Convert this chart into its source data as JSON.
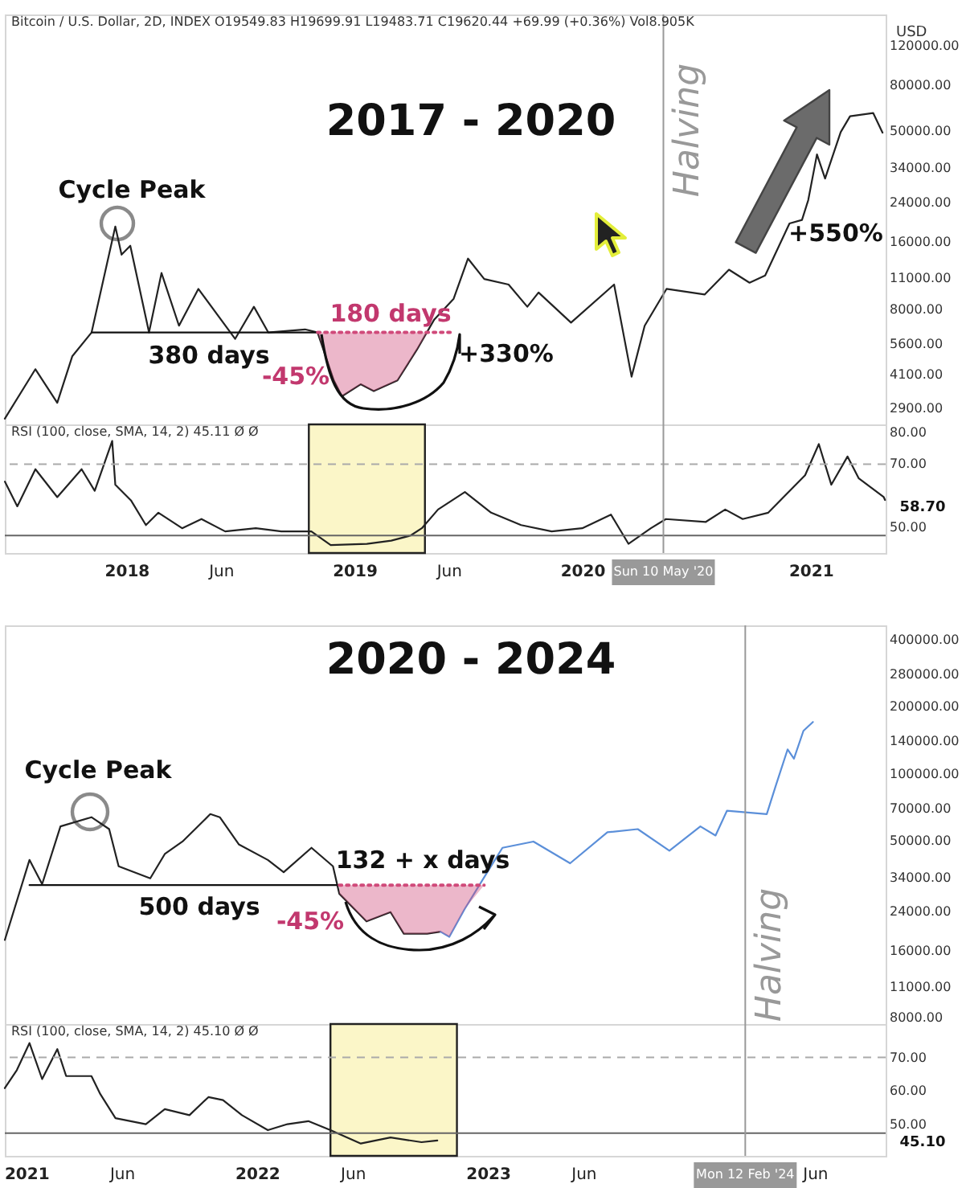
{
  "chart_data": [
    {
      "type": "line",
      "title": "2017 - 2020",
      "ylabel": "USD",
      "log": true,
      "tick_labels": "y",
      "xlim": [
        "2017-06-20",
        "2021-05-01"
      ],
      "ylim": [
        2450,
        165000
      ],
      "yticks": [
        {
          "value": 120000,
          "label": "120000.00"
        },
        {
          "value": 80000,
          "label": "80000.00"
        },
        {
          "value": 50000,
          "label": "50000.00"
        },
        {
          "value": 34000,
          "label": "34000.00"
        },
        {
          "value": 24000,
          "label": "24000.00"
        },
        {
          "value": 16000,
          "label": "16000.00"
        },
        {
          "value": 11000,
          "label": "11000.00"
        },
        {
          "value": 8000,
          "label": "8000.00"
        },
        {
          "value": 5600,
          "label": "5600.00"
        },
        {
          "value": 4100,
          "label": "4100.00"
        },
        {
          "value": 2900,
          "label": "2900.00"
        }
      ],
      "series": [
        {
          "color": "#222222",
          "x": [
            "2017-06-20",
            "2017-08-08",
            "2017-09-12",
            "2017-10-06",
            "2017-11-06",
            "2017-12-14",
            "2017-12-24",
            "2018-01-07",
            "2018-02-06",
            "2018-02-26",
            "2018-03-26",
            "2018-04-26",
            "2018-06-24",
            "2018-07-24",
            "2018-08-16",
            "2018-10-14",
            "2018-11-03",
            "2018-11-29",
            "2018-12-12",
            "2019-01-11",
            "2019-02-01",
            "2019-03-11",
            "2019-04-11",
            "2019-05-09",
            "2019-06-09",
            "2019-07-02",
            "2019-07-28",
            "2019-09-05",
            "2019-10-05",
            "2019-10-23",
            "2019-12-14",
            "2020-02-21",
            "2020-03-20",
            "2020-04-10",
            "2020-05-15",
            "2020-07-15",
            "2020-08-23",
            "2020-09-25",
            "2020-10-20",
            "2020-11-28",
            "2020-12-18",
            "2020-12-28",
            "2021-01-11",
            "2021-01-24",
            "2021-02-18",
            "2021-03-05",
            "2021-04-11",
            "2021-04-26"
          ],
          "values": [
            2600,
            4320,
            3060,
            4930,
            6300,
            18700,
            14000,
            15350,
            6300,
            11600,
            6750,
            9850,
            5900,
            8200,
            6300,
            6500,
            6300,
            3850,
            3270,
            3700,
            3450,
            3850,
            5270,
            7200,
            8900,
            13450,
            10900,
            10300,
            8200,
            9500,
            6970,
            10300,
            4000,
            6750,
            9850,
            9300,
            12000,
            10500,
            11300,
            19300,
            20000,
            24500,
            39200,
            30600,
            49300,
            58000,
            60000,
            49000
          ]
        },
        {
          "color": "#111111",
          "x": [
            "2017-11-06",
            "2018-11-03"
          ],
          "values": [
            6300,
            6300
          ]
        },
        {
          "color": "#d04a7a",
          "line_style": "dotted",
          "x": [
            "2018-11-03",
            "2018-11-29",
            "2018-12-12",
            "2019-01-11",
            "2019-02-01",
            "2019-03-11",
            "2019-04-11",
            "2019-04-28",
            "2019-06-10"
          ],
          "values": [
            6300,
            6300,
            6300,
            6300,
            6300,
            6300,
            6300,
            6300,
            6300
          ],
          "lower": [
            6300,
            3850,
            3270,
            3700,
            3450,
            3850,
            5270,
            6300,
            6300
          ],
          "upper": [
            6300,
            6300,
            6300,
            6300,
            6300,
            6300,
            6300,
            6300,
            6300
          ]
        }
      ],
      "ref_lines": [
        {
          "axis": "x",
          "value": "2020-05-10",
          "label": "Halving",
          "color": "#999999"
        }
      ],
      "annotations": [
        "Bitcoin / U.S. Dollar, 2D, INDEX  O19549.83  H19699.91  L19483.71  C19620.44  +69.99 (+0.36%)  Vol8.905K",
        "Cycle Peak",
        "380 days",
        "180 days",
        "-45%",
        "+330%",
        "+550%"
      ]
    },
    {
      "type": "line",
      "xlim": [
        "2017-06-20",
        "2021-05-01"
      ],
      "xticks": [
        {
          "value": "2018-01-01",
          "label": "2018"
        },
        {
          "value": "2018-06-01",
          "label": "Jun"
        },
        {
          "value": "2019-01-01",
          "label": "2019"
        },
        {
          "value": "2019-06-01",
          "label": "Jun"
        },
        {
          "value": "2020-01-01",
          "label": "2020"
        },
        {
          "value": "2021-01-01",
          "label": "2021"
        }
      ],
      "ylim": [
        42,
        82.5
      ],
      "yticks": [
        {
          "value": 80,
          "label": "80.00"
        },
        {
          "value": 70,
          "label": "70.00"
        },
        {
          "value": 50,
          "label": "50.00"
        }
      ],
      "series": [
        {
          "color": "#222222",
          "x": [
            "2017-06-20",
            "2017-07-10",
            "2017-08-08",
            "2017-09-12",
            "2017-10-21",
            "2017-11-11",
            "2017-12-09",
            "2017-12-14",
            "2018-01-08",
            "2018-02-01",
            "2018-02-21",
            "2018-03-31",
            "2018-05-01",
            "2018-06-08",
            "2018-07-27",
            "2018-09-06",
            "2018-10-24",
            "2018-11-24",
            "2019-01-21",
            "2019-03-01",
            "2019-04-01",
            "2019-04-19",
            "2019-05-15",
            "2019-06-27",
            "2019-08-08",
            "2019-09-25",
            "2019-11-13",
            "2020-01-01",
            "2020-02-16",
            "2020-03-15",
            "2020-04-20",
            "2020-05-14",
            "2020-07-17",
            "2020-08-17",
            "2020-09-14",
            "2020-10-25",
            "2020-12-03",
            "2020-12-23",
            "2021-01-14",
            "2021-02-03",
            "2021-03-01",
            "2021-03-19",
            "2021-04-28",
            "2021-04-30"
          ],
          "values": [
            64.5,
            56.7,
            68.4,
            59.6,
            68.4,
            61.6,
            77.3,
            63.5,
            58.6,
            50.8,
            54.7,
            49.8,
            52.7,
            48.8,
            49.8,
            48.8,
            48.8,
            44.5,
            44.9,
            45.9,
            47.5,
            49.8,
            55.7,
            61.2,
            54.7,
            50.8,
            48.8,
            49.8,
            54.1,
            44.9,
            49.8,
            52.7,
            51.8,
            55.7,
            52.7,
            54.7,
            62.5,
            66.5,
            76.3,
            63.5,
            72.4,
            65.5,
            59.6,
            58.7
          ]
        }
      ],
      "ref_lines": [
        {
          "axis": "y",
          "value": 70,
          "line_style": "dashed",
          "color": "#aaaaaa"
        },
        {
          "axis": "y",
          "value": 47.5,
          "color": "#666666"
        },
        {
          "axis": "x",
          "value": "2020-05-10",
          "label": "Sun 10 May '20",
          "color": "#999999"
        }
      ],
      "bands": [
        {
          "axis": "x",
          "from": "2018-10-20",
          "to": "2019-04-24",
          "color": "#fbf6c8"
        }
      ],
      "annotations": [
        "RSI (100, close, SMA, 14, 2)  45.11  Ø  Ø",
        "58.70"
      ]
    },
    {
      "type": "line",
      "title": "2020 - 2024",
      "log": true,
      "tick_labels": "y",
      "xlim": [
        "2020-11-28",
        "2024-09-21"
      ],
      "ylim": [
        7500,
        465000
      ],
      "yticks": [
        {
          "value": 400000,
          "label": "400000.00"
        },
        {
          "value": 280000,
          "label": "280000.00"
        },
        {
          "value": 200000,
          "label": "200000.00"
        },
        {
          "value": 140000,
          "label": "140000.00"
        },
        {
          "value": 100000,
          "label": "100000.00"
        },
        {
          "value": 70000,
          "label": "70000.00"
        },
        {
          "value": 50000,
          "label": "50000.00"
        },
        {
          "value": 34000,
          "label": "34000.00"
        },
        {
          "value": 24000,
          "label": "24000.00"
        },
        {
          "value": 16000,
          "label": "16000.00"
        },
        {
          "value": 11000,
          "label": "11000.00"
        },
        {
          "value": 8000,
          "label": "8000.00"
        }
      ],
      "series": [
        {
          "color": "#222222",
          "x": [
            "2020-11-28",
            "2021-01-06",
            "2021-01-26",
            "2021-02-24",
            "2021-04-14",
            "2021-05-12",
            "2021-05-27",
            "2021-07-16",
            "2021-08-08",
            "2021-09-05",
            "2021-10-19",
            "2021-11-03",
            "2021-12-03",
            "2022-01-18",
            "2022-02-12",
            "2022-03-28",
            "2022-05-01",
            "2022-05-11",
            "2022-06-23",
            "2022-07-31",
            "2022-08-21",
            "2022-09-27",
            "2022-10-18"
          ],
          "values": [
            17900,
            41000,
            31900,
            58000,
            63800,
            56400,
            38400,
            33900,
            43600,
            49600,
            65900,
            63800,
            48200,
            41000,
            36100,
            46500,
            38400,
            28900,
            21700,
            23900,
            19100,
            19100,
            19500
          ]
        },
        {
          "color": "#5b8fd9",
          "x": [
            "2022-10-18",
            "2022-11-01",
            "2022-11-25",
            "2022-12-31",
            "2023-01-24",
            "2023-03-14",
            "2023-05-11",
            "2023-07-09",
            "2023-08-26",
            "2023-10-15",
            "2023-12-03",
            "2023-12-27",
            "2024-01-14",
            "2024-03-17",
            "2024-03-31",
            "2024-04-19",
            "2024-04-29",
            "2024-05-14",
            "2024-05-29"
          ],
          "values": [
            19500,
            18500,
            24600,
            36100,
            46500,
            49600,
            39600,
            54600,
            56400,
            45100,
            58000,
            52800,
            68200,
            65900,
            87900,
            128800,
            117000,
            156000,
            171000
          ]
        },
        {
          "color": "#111111",
          "x": [
            "2021-01-06",
            "2022-05-11"
          ],
          "values": [
            31600,
            31600
          ]
        },
        {
          "color": "#d04a7a",
          "line_style": "dotted",
          "x": [
            "2022-05-11",
            "2022-06-23",
            "2022-07-31",
            "2022-08-21",
            "2022-09-27",
            "2022-10-18",
            "2022-11-01",
            "2022-11-25",
            "2022-12-26"
          ],
          "values": [
            31600,
            31600,
            31600,
            31600,
            31600,
            31600,
            31600,
            31600,
            31600
          ],
          "lower": [
            28900,
            21700,
            23900,
            19100,
            19100,
            19500,
            18500,
            24600,
            31600
          ],
          "upper": [
            31600,
            31600,
            31600,
            31600,
            31600,
            31600,
            31600,
            31600,
            31600
          ]
        }
      ],
      "ref_lines": [
        {
          "axis": "x",
          "value": "2024-02-12",
          "label": "Halving",
          "color": "#999999"
        }
      ],
      "annotations": [
        "Cycle Peak",
        "500 days",
        "132 + x days",
        "-45%"
      ]
    },
    {
      "type": "line",
      "xlim": [
        "2020-11-28",
        "2024-09-21"
      ],
      "xticks": [
        {
          "value": "2021-01-01",
          "label": "2021"
        },
        {
          "value": "2021-06-01",
          "label": "Jun"
        },
        {
          "value": "2022-01-01",
          "label": "2022"
        },
        {
          "value": "2022-06-01",
          "label": "Jun"
        },
        {
          "value": "2023-01-01",
          "label": "2023"
        },
        {
          "value": "2023-06-01",
          "label": "Jun"
        },
        {
          "value": "2024-06-01",
          "label": "Jun"
        }
      ],
      "ylim": [
        40.5,
        80
      ],
      "yticks": [
        {
          "value": 70,
          "label": "70.00"
        },
        {
          "value": 60,
          "label": "60.00"
        },
        {
          "value": 50,
          "label": "50.00"
        }
      ],
      "series": [
        {
          "color": "#222222",
          "x": [
            "2020-11-28",
            "2020-12-17",
            "2021-01-06",
            "2021-01-26",
            "2021-02-19",
            "2021-03-05",
            "2021-04-14",
            "2021-04-28",
            "2021-05-22",
            "2021-07-09",
            "2021-08-08",
            "2021-09-16",
            "2021-10-16",
            "2021-11-08",
            "2021-12-08",
            "2022-01-18",
            "2022-02-18",
            "2022-03-23",
            "2022-04-27",
            "2022-06-14",
            "2022-07-31",
            "2022-09-18",
            "2022-10-13"
          ],
          "values": [
            60.8,
            66.2,
            74.3,
            63.5,
            72.5,
            64.4,
            64.4,
            59,
            51.8,
            50,
            54.5,
            52.7,
            58.1,
            57.2,
            52.7,
            48.2,
            50,
            50.9,
            48.2,
            44.2,
            46,
            44.6,
            45.1
          ]
        }
      ],
      "ref_lines": [
        {
          "axis": "y",
          "value": 70,
          "line_style": "dashed",
          "color": "#aaaaaa"
        },
        {
          "axis": "y",
          "value": 47.3,
          "color": "#666666"
        },
        {
          "axis": "x",
          "value": "2024-02-12",
          "label": "Mon 12 Feb '24",
          "color": "#999999"
        }
      ],
      "bands": [
        {
          "axis": "x",
          "from": "2022-04-27",
          "to": "2022-11-13",
          "color": "#fbf6c8"
        }
      ],
      "annotations": [
        "RSI (100, close, SMA, 14, 2)  45.10  Ø  Ø",
        "45.10"
      ]
    }
  ]
}
